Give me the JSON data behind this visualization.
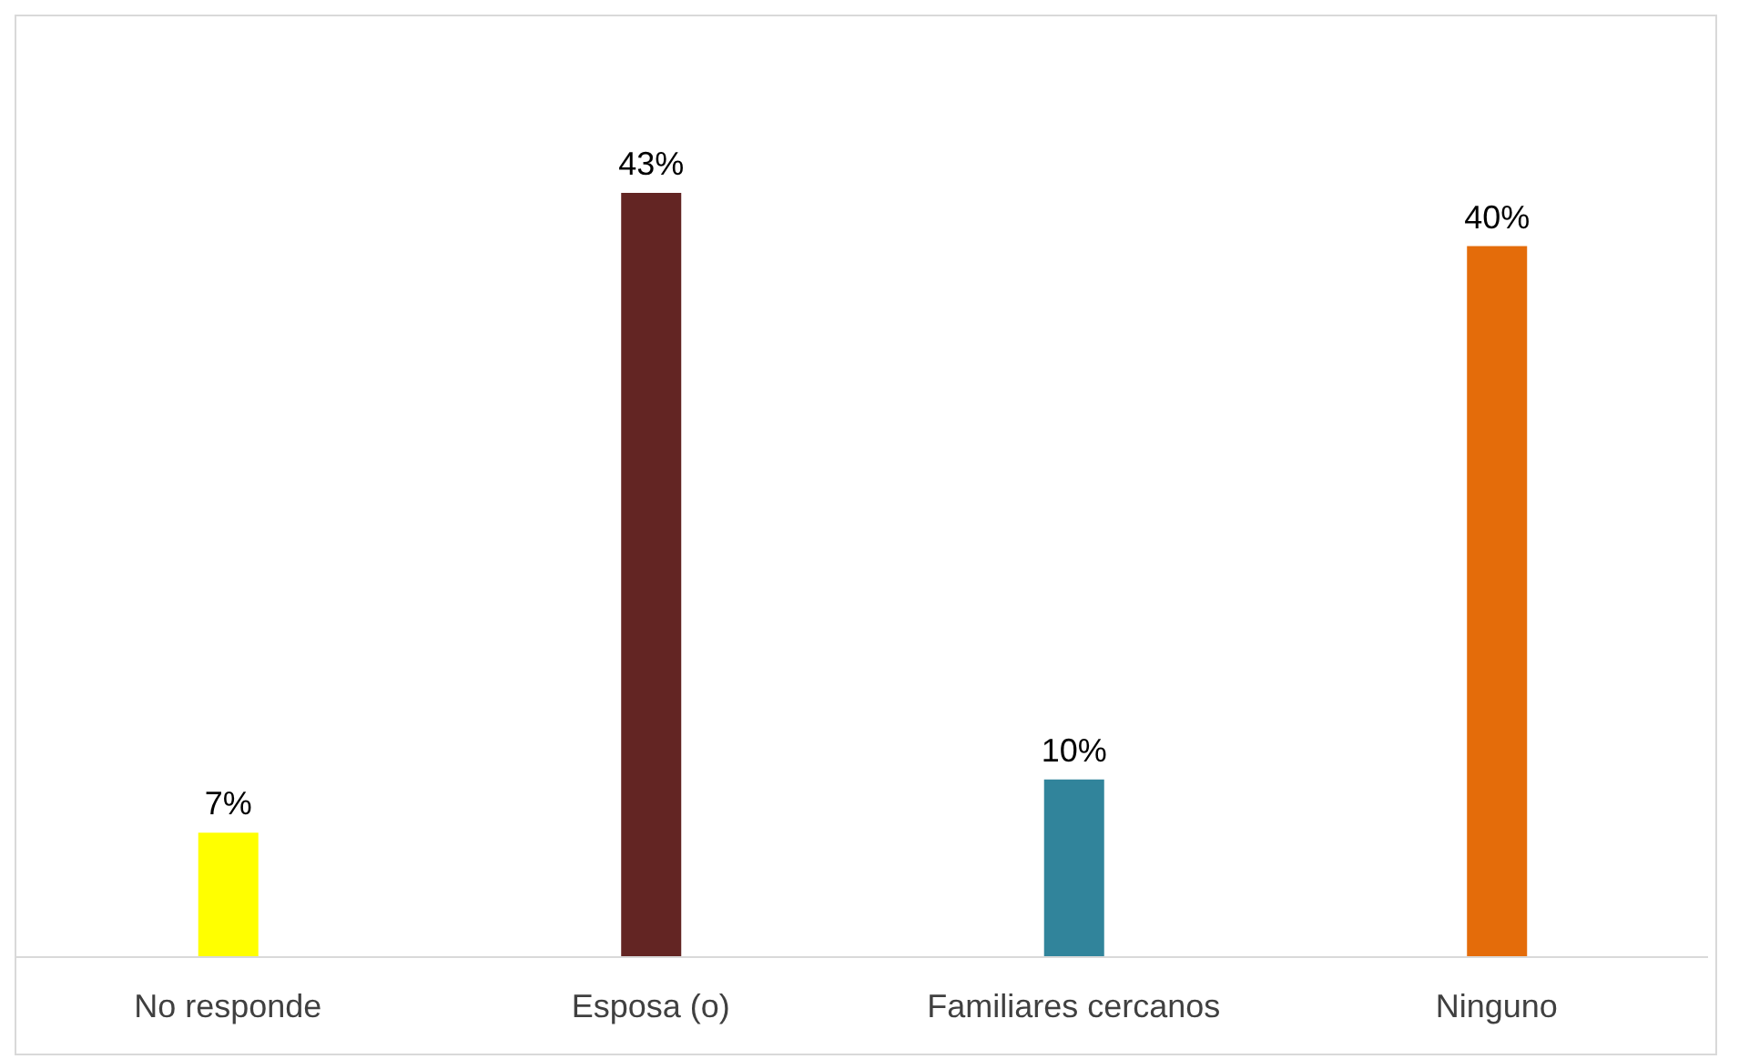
{
  "chart_data": {
    "type": "bar",
    "categories": [
      "No responde",
      "Esposa (o)",
      "Familiares cercanos",
      "Ninguno"
    ],
    "values": [
      7,
      43,
      10,
      40
    ],
    "colors": [
      "#ffff00",
      "#632523",
      "#31849b",
      "#e46c0a"
    ],
    "value_labels": [
      "7%",
      "43%",
      "10%",
      "40%"
    ]
  }
}
